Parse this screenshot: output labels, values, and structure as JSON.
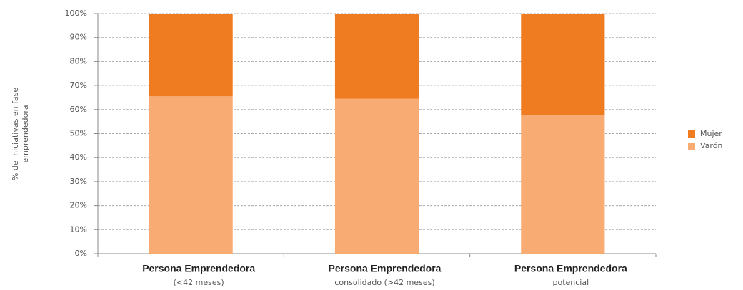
{
  "chart_data": {
    "type": "stacked_bar",
    "ylabel": [
      "% de iniciativas en fase",
      "emprendedora"
    ],
    "categories": [
      {
        "name": "Persona Emprendedora",
        "detail": "(<42 meses)"
      },
      {
        "name": "Persona Emprendedora",
        "detail": "consolidado (>42 meses)"
      },
      {
        "name": "Persona Emprendedora",
        "detail": "potencial"
      }
    ],
    "series": [
      {
        "name": "Varón",
        "color": "#f8ab72",
        "values": [
          65.5,
          64.5,
          57.5
        ]
      },
      {
        "name": "Mujer",
        "color": "#f07c22",
        "values": [
          34.5,
          35.5,
          42.5
        ]
      }
    ],
    "ylim": [
      0,
      100
    ],
    "yticks": [
      {
        "value": 0,
        "label": "0%"
      },
      {
        "value": 10,
        "label": "10%"
      },
      {
        "value": 20,
        "label": "20%"
      },
      {
        "value": 30,
        "label": "30%"
      },
      {
        "value": 40,
        "label": "40%"
      },
      {
        "value": 50,
        "label": "50%"
      },
      {
        "value": 60,
        "label": "60%"
      },
      {
        "value": 70,
        "label": "70%"
      },
      {
        "value": 80,
        "label": "80%"
      },
      {
        "value": 90,
        "label": "90%"
      },
      {
        "value": 100,
        "label": "100%"
      }
    ],
    "grid": true,
    "legend": "right"
  }
}
